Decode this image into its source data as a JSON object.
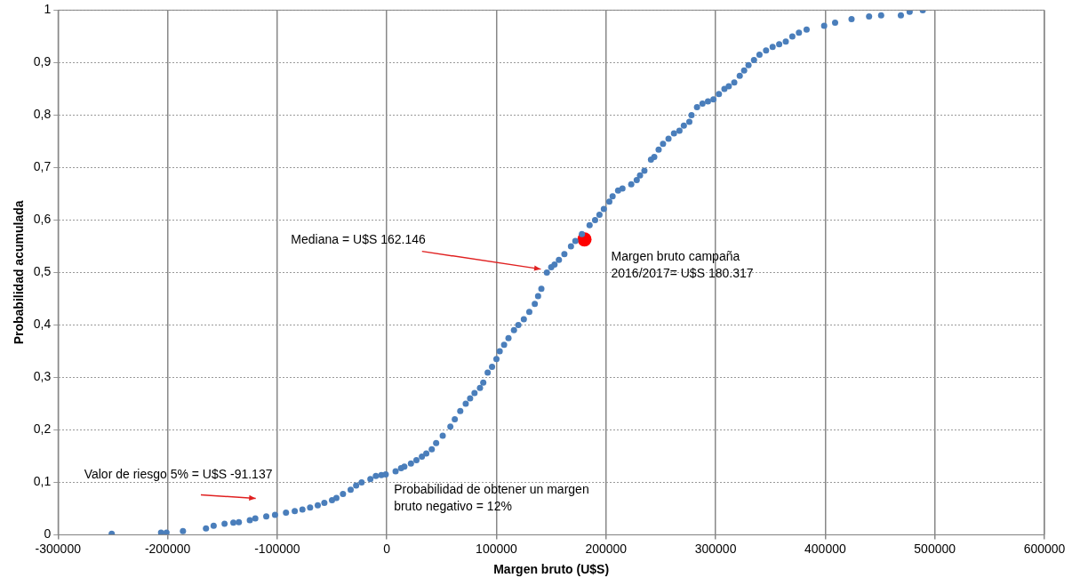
{
  "chart_data": {
    "type": "scatter",
    "xlabel": "Margen bruto (U$S)",
    "ylabel": "Probabilidad acumulada",
    "xlim": [
      -300000,
      600000
    ],
    "xticks": [
      -300000,
      -200000,
      -100000,
      0,
      100000,
      200000,
      300000,
      400000,
      500000,
      600000
    ],
    "ylim": [
      0,
      1
    ],
    "yticks": [
      0,
      {
        "value": 0.1,
        "label": "0,1"
      },
      {
        "value": 0.2,
        "label": "0,2"
      },
      {
        "value": 0.3,
        "label": "0,3"
      },
      {
        "value": 0.4,
        "label": "0,4"
      },
      {
        "value": 0.5,
        "label": "0,5"
      },
      {
        "value": 0.6,
        "label": "0,6"
      },
      {
        "value": 0.7,
        "label": "0,7"
      },
      {
        "value": 0.8,
        "label": "0,8"
      },
      {
        "value": 0.9,
        "label": "0,9"
      },
      1
    ],
    "grid": true,
    "legend": false,
    "marker": "circle",
    "series": [
      {
        "color": "#4a7ebb",
        "x": [
          -251000,
          -206000,
          -201000,
          -186000,
          -165000,
          -158000,
          -148000,
          -140000,
          -135000,
          -125000,
          -120000,
          -110000,
          -102000,
          -92000,
          -84000,
          -77000,
          -70000,
          -63000,
          -57000,
          -50000,
          -46000,
          -40000,
          -33000,
          -28000,
          -23000,
          -15000,
          -10000,
          -5000,
          -1000,
          8000,
          13000,
          16000,
          22000,
          27000,
          32000,
          36000,
          41000,
          45000,
          51000,
          58000,
          62000,
          67000,
          72000,
          76000,
          80000,
          85000,
          88000,
          92000,
          96000,
          100000,
          103000,
          107000,
          111000,
          116000,
          120000,
          125000,
          130000,
          135000,
          138000,
          141000,
          146000,
          150000,
          153000,
          157000,
          162000,
          168000,
          172000,
          178000,
          185000,
          190000,
          194000,
          198000,
          203000,
          206000,
          211000,
          215000,
          223000,
          228000,
          231000,
          235000,
          241000,
          244000,
          248000,
          252000,
          257000,
          262000,
          267000,
          271000,
          276000,
          278000,
          283000,
          288000,
          293000,
          298000,
          303000,
          308000,
          312000,
          317000,
          322000,
          326000,
          330000,
          335000,
          340000,
          346000,
          352000,
          358000,
          364000,
          370000,
          376000,
          383000,
          399000,
          409000,
          424000,
          440000,
          451000,
          469000,
          477000,
          489000
        ],
        "values": [
          0.002,
          0.004,
          0.004,
          0.007,
          0.012,
          0.017,
          0.021,
          0.023,
          0.024,
          0.028,
          0.031,
          0.035,
          0.038,
          0.042,
          0.045,
          0.048,
          0.052,
          0.056,
          0.061,
          0.066,
          0.07,
          0.078,
          0.086,
          0.094,
          0.1,
          0.106,
          0.112,
          0.114,
          0.115,
          0.121,
          0.127,
          0.13,
          0.136,
          0.142,
          0.149,
          0.155,
          0.163,
          0.175,
          0.189,
          0.206,
          0.22,
          0.236,
          0.25,
          0.26,
          0.27,
          0.28,
          0.29,
          0.309,
          0.32,
          0.335,
          0.35,
          0.362,
          0.375,
          0.39,
          0.4,
          0.411,
          0.425,
          0.44,
          0.455,
          0.469,
          0.5,
          0.51,
          0.515,
          0.524,
          0.535,
          0.55,
          0.56,
          0.573,
          0.59,
          0.6,
          0.61,
          0.621,
          0.635,
          0.645,
          0.656,
          0.66,
          0.668,
          0.676,
          0.685,
          0.694,
          0.715,
          0.72,
          0.734,
          0.745,
          0.755,
          0.765,
          0.77,
          0.78,
          0.787,
          0.8,
          0.815,
          0.822,
          0.826,
          0.83,
          0.84,
          0.85,
          0.855,
          0.862,
          0.875,
          0.885,
          0.895,
          0.905,
          0.915,
          0.923,
          0.93,
          0.935,
          0.94,
          0.95,
          0.957,
          0.963,
          0.97,
          0.976,
          0.983,
          0.988,
          0.99,
          0.99,
          0.997,
          1
        ]
      },
      {
        "color": "#ff0000",
        "x": [
          180317
        ],
        "values": [
          0.563
        ]
      }
    ],
    "annotations": [
      "Mediana = U$S 162.146",
      "Margen bruto campaña 2016/2017= U$S 180.317",
      "Valor de riesgo 5% = U$S -91.137",
      "Probabilidad de obtener un margen bruto negativo = 12%"
    ]
  }
}
